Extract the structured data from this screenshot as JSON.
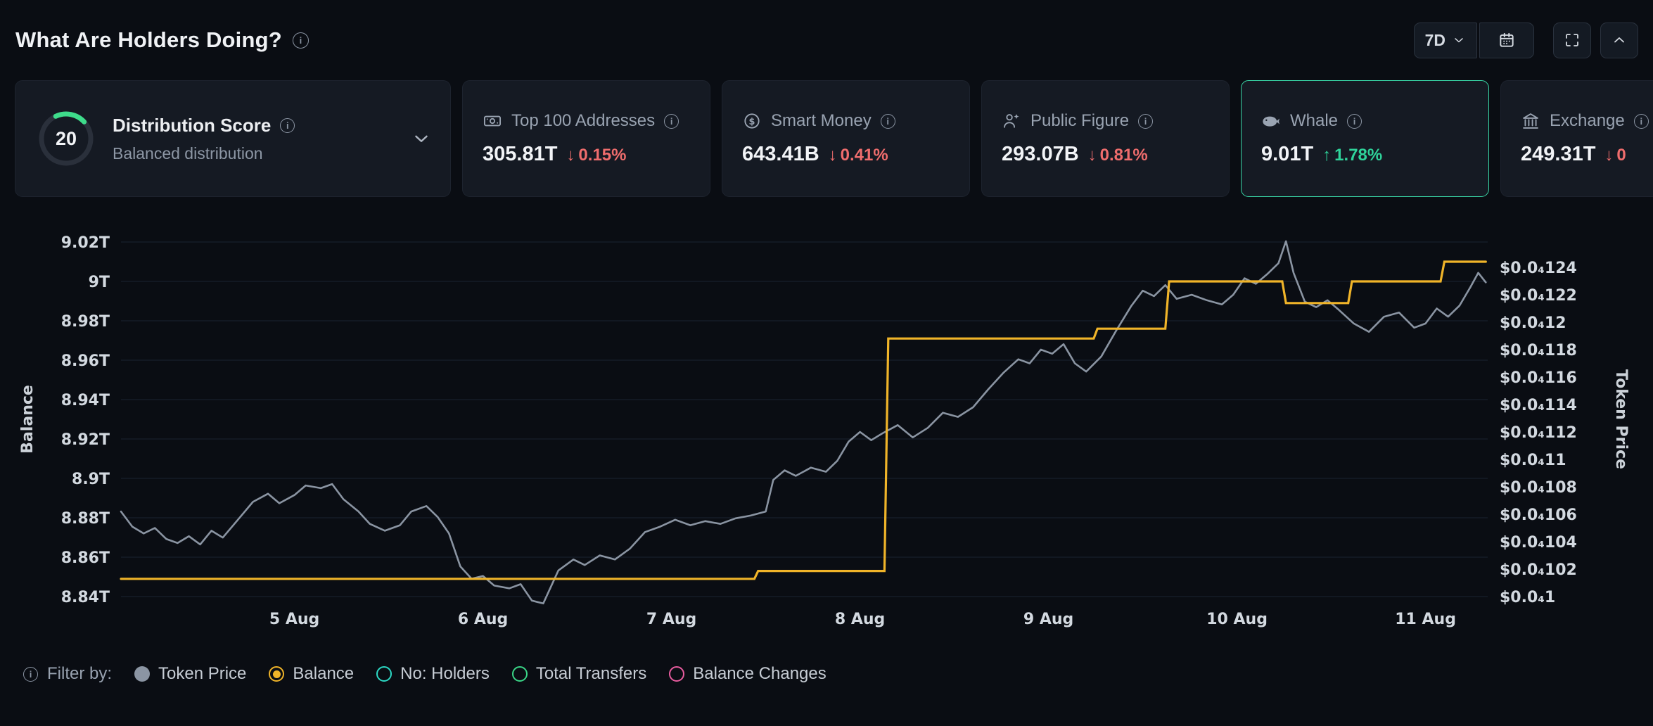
{
  "header": {
    "title": "What Are Holders Doing?",
    "timeframe": "7D",
    "icons": [
      "info-icon",
      "chevron-down-icon",
      "calendar-icon",
      "fullscreen-icon",
      "chevron-up-icon"
    ]
  },
  "cards": {
    "distribution": {
      "score": "20",
      "score_percent": 20,
      "gauge_color": "#3edc8b",
      "title": "Distribution Score",
      "subtitle": "Balanced distribution"
    },
    "stats": [
      {
        "id": "top100",
        "icon": "banknote-icon",
        "label": "Top 100 Addresses",
        "value": "305.81T",
        "direction": "down",
        "change": "0.15%",
        "selected": false
      },
      {
        "id": "smart-money",
        "icon": "coin-icon",
        "label": "Smart Money",
        "value": "643.41B",
        "direction": "down",
        "change": "0.41%",
        "selected": false
      },
      {
        "id": "public-figure",
        "icon": "person-star-icon",
        "label": "Public Figure",
        "value": "293.07B",
        "direction": "down",
        "change": "0.81%",
        "selected": false
      },
      {
        "id": "whale",
        "icon": "whale-icon",
        "label": "Whale",
        "value": "9.01T",
        "direction": "up",
        "change": "1.78%",
        "selected": true
      },
      {
        "id": "exchange",
        "icon": "bank-icon",
        "label": "Exchange",
        "value": "249.31T",
        "direction": "down",
        "change": "0",
        "selected": false
      }
    ]
  },
  "chart_data": {
    "type": "line",
    "title": "What Are Holders Doing?",
    "grid": "horizontal",
    "x": {
      "tick_labels": [
        "5 Aug",
        "6 Aug",
        "7 Aug",
        "8 Aug",
        "9 Aug",
        "10 Aug",
        "11 Aug"
      ],
      "tick_days": [
        5,
        6,
        7,
        8,
        9,
        10,
        11
      ],
      "domain_days": [
        4.08,
        11.33
      ]
    },
    "left_axis": {
      "label": "Balance",
      "tick_labels": [
        "9.02T",
        "9T",
        "8.98T",
        "8.96T",
        "8.94T",
        "8.92T",
        "8.9T",
        "8.88T",
        "8.86T",
        "8.84T"
      ],
      "tick_values": [
        9.02,
        9.0,
        8.98,
        8.96,
        8.94,
        8.92,
        8.9,
        8.88,
        8.86,
        8.84
      ],
      "domain": [
        8.84,
        9.02
      ]
    },
    "right_axis": {
      "label": "Token Price",
      "format": "$0.0₄{digits}",
      "tick_labels": [
        "$0.0₄124",
        "$0.0₄122",
        "$0.0₄12",
        "$0.0₄118",
        "$0.0₄116",
        "$0.0₄114",
        "$0.0₄112",
        "$0.0₄11",
        "$0.0₄108",
        "$0.0₄106",
        "$0.0₄104",
        "$0.0₄102",
        "$0.0₄1"
      ],
      "tick_values": [
        124,
        122,
        120,
        118,
        116,
        114,
        112,
        110,
        108,
        106,
        104,
        102,
        100
      ],
      "domain": [
        100,
        124
      ]
    },
    "series": [
      {
        "name": "Token Price",
        "axis": "right",
        "color": "#8a94a2",
        "style": "line",
        "points": [
          [
            4.08,
            106.2
          ],
          [
            4.14,
            105.1
          ],
          [
            4.2,
            104.6
          ],
          [
            4.26,
            105.0
          ],
          [
            4.32,
            104.2
          ],
          [
            4.38,
            103.9
          ],
          [
            4.44,
            104.4
          ],
          [
            4.5,
            103.8
          ],
          [
            4.56,
            104.8
          ],
          [
            4.62,
            104.3
          ],
          [
            4.7,
            105.6
          ],
          [
            4.78,
            106.9
          ],
          [
            4.86,
            107.5
          ],
          [
            4.92,
            106.8
          ],
          [
            5.0,
            107.4
          ],
          [
            5.06,
            108.1
          ],
          [
            5.14,
            107.9
          ],
          [
            5.2,
            108.2
          ],
          [
            5.26,
            107.1
          ],
          [
            5.34,
            106.2
          ],
          [
            5.4,
            105.3
          ],
          [
            5.48,
            104.8
          ],
          [
            5.56,
            105.2
          ],
          [
            5.62,
            106.2
          ],
          [
            5.7,
            106.6
          ],
          [
            5.76,
            105.8
          ],
          [
            5.82,
            104.6
          ],
          [
            5.88,
            102.2
          ],
          [
            5.94,
            101.3
          ],
          [
            6.0,
            101.5
          ],
          [
            6.06,
            100.8
          ],
          [
            6.14,
            100.6
          ],
          [
            6.2,
            100.9
          ],
          [
            6.26,
            99.7
          ],
          [
            6.32,
            99.5
          ],
          [
            6.4,
            101.9
          ],
          [
            6.48,
            102.7
          ],
          [
            6.54,
            102.3
          ],
          [
            6.62,
            103.0
          ],
          [
            6.7,
            102.7
          ],
          [
            6.78,
            103.5
          ],
          [
            6.86,
            104.7
          ],
          [
            6.94,
            105.1
          ],
          [
            7.02,
            105.6
          ],
          [
            7.1,
            105.2
          ],
          [
            7.18,
            105.5
          ],
          [
            7.26,
            105.3
          ],
          [
            7.34,
            105.7
          ],
          [
            7.42,
            105.9
          ],
          [
            7.5,
            106.2
          ],
          [
            7.54,
            108.5
          ],
          [
            7.6,
            109.2
          ],
          [
            7.66,
            108.8
          ],
          [
            7.74,
            109.4
          ],
          [
            7.82,
            109.1
          ],
          [
            7.88,
            109.9
          ],
          [
            7.94,
            111.3
          ],
          [
            8.0,
            112.0
          ],
          [
            8.06,
            111.4
          ],
          [
            8.12,
            111.9
          ],
          [
            8.2,
            112.5
          ],
          [
            8.28,
            111.6
          ],
          [
            8.36,
            112.3
          ],
          [
            8.44,
            113.4
          ],
          [
            8.52,
            113.1
          ],
          [
            8.6,
            113.8
          ],
          [
            8.68,
            115.1
          ],
          [
            8.76,
            116.3
          ],
          [
            8.84,
            117.3
          ],
          [
            8.9,
            117.0
          ],
          [
            8.96,
            118.0
          ],
          [
            9.02,
            117.7
          ],
          [
            9.08,
            118.4
          ],
          [
            9.14,
            117.0
          ],
          [
            9.2,
            116.4
          ],
          [
            9.28,
            117.5
          ],
          [
            9.36,
            119.4
          ],
          [
            9.44,
            121.2
          ],
          [
            9.5,
            122.3
          ],
          [
            9.56,
            121.9
          ],
          [
            9.62,
            122.7
          ],
          [
            9.68,
            121.7
          ],
          [
            9.76,
            122.0
          ],
          [
            9.84,
            121.6
          ],
          [
            9.92,
            121.3
          ],
          [
            9.98,
            122.0
          ],
          [
            10.04,
            123.2
          ],
          [
            10.1,
            122.8
          ],
          [
            10.16,
            123.5
          ],
          [
            10.22,
            124.3
          ],
          [
            10.26,
            125.9
          ],
          [
            10.3,
            123.6
          ],
          [
            10.36,
            121.5
          ],
          [
            10.42,
            121.1
          ],
          [
            10.48,
            121.6
          ],
          [
            10.54,
            120.9
          ],
          [
            10.62,
            119.9
          ],
          [
            10.7,
            119.3
          ],
          [
            10.78,
            120.4
          ],
          [
            10.86,
            120.7
          ],
          [
            10.94,
            119.6
          ],
          [
            11.0,
            119.9
          ],
          [
            11.06,
            121.0
          ],
          [
            11.12,
            120.4
          ],
          [
            11.18,
            121.2
          ],
          [
            11.24,
            122.6
          ],
          [
            11.28,
            123.6
          ],
          [
            11.32,
            122.9
          ]
        ]
      },
      {
        "name": "Balance",
        "axis": "left",
        "color": "#f0b429",
        "style": "step-line",
        "points": [
          [
            4.08,
            8.849
          ],
          [
            7.44,
            8.849
          ],
          [
            7.46,
            8.853
          ],
          [
            8.13,
            8.853
          ],
          [
            8.15,
            8.971
          ],
          [
            9.24,
            8.971
          ],
          [
            9.26,
            8.976
          ],
          [
            9.62,
            8.976
          ],
          [
            9.64,
            9.0
          ],
          [
            10.24,
            9.0
          ],
          [
            10.26,
            8.989
          ],
          [
            10.59,
            8.989
          ],
          [
            10.61,
            9.0
          ],
          [
            11.08,
            9.0
          ],
          [
            11.1,
            9.01
          ],
          [
            11.32,
            9.01
          ]
        ]
      }
    ]
  },
  "legend": {
    "label": "Filter by:",
    "items": [
      {
        "label": "Token Price",
        "color": "#8b95a3",
        "style": "filled"
      },
      {
        "label": "Balance",
        "color": "#f0b429",
        "style": "selected"
      },
      {
        "label": "No: Holders",
        "color": "#2cd9c5",
        "style": "hollow"
      },
      {
        "label": "Total Transfers",
        "color": "#3ad687",
        "style": "hollow"
      },
      {
        "label": "Balance Changes",
        "color": "#e85c9f",
        "style": "hollow"
      }
    ]
  }
}
